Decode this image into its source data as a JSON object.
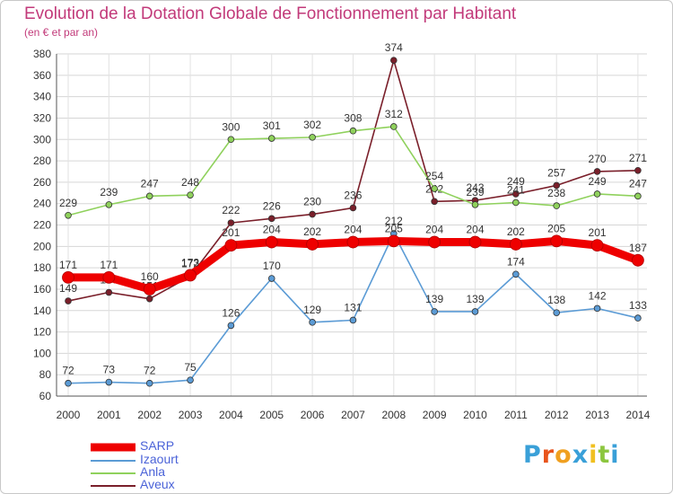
{
  "header": {
    "title": "Evolution de la Dotation Globale de Fonctionnement par Habitant",
    "subtitle": "(en € et par an)"
  },
  "chart_data": {
    "type": "line",
    "title": "Evolution de la Dotation Globale de Fonctionnement par Habitant",
    "subtitle": "(en € et par an)",
    "xlabel": "",
    "ylabel": "",
    "ylim": [
      60,
      380
    ],
    "yticks": [
      60,
      80,
      100,
      120,
      140,
      160,
      180,
      200,
      220,
      240,
      260,
      280,
      300,
      320,
      340,
      360,
      380
    ],
    "grid": true,
    "legend_position": "bottom-left",
    "categories": [
      "2000",
      "2001",
      "2002",
      "2003",
      "2004",
      "2005",
      "2006",
      "2007",
      "2008",
      "2009",
      "2010",
      "2011",
      "2012",
      "2013",
      "2014"
    ],
    "series": [
      {
        "name": "Aveux",
        "color": "#7a1f2a",
        "values": [
          149,
          157,
          151,
          172,
          222,
          226,
          230,
          236,
          374,
          242,
          243,
          249,
          257,
          270,
          271
        ],
        "labels": [
          "149",
          "157",
          "151",
          "172",
          "222",
          "226",
          "230",
          "236",
          "374",
          "242",
          "243",
          "249",
          "257",
          "270",
          "271"
        ]
      },
      {
        "name": "Anla",
        "color": "#8fd15c",
        "values": [
          229,
          239,
          247,
          248,
          300,
          301,
          302,
          308,
          312,
          254,
          239,
          241,
          238,
          249,
          247
        ],
        "labels": [
          "229",
          "239",
          "247",
          "248",
          "300",
          "301",
          "302",
          "308",
          "312",
          "254",
          "239",
          "241",
          "238",
          "249",
          "247"
        ]
      },
      {
        "name": "Izaourt",
        "color": "#5b9bd5",
        "values": [
          72,
          73,
          72,
          75,
          126,
          170,
          129,
          131,
          212,
          139,
          139,
          174,
          138,
          142,
          133
        ],
        "labels": [
          "72",
          "73",
          "72",
          "75",
          "126",
          "170",
          "129",
          "131",
          "212",
          "139",
          "139",
          "174",
          "138",
          "142",
          "133"
        ]
      },
      {
        "name": "SARP",
        "color": "#ee0000",
        "values": [
          171,
          171,
          160,
          173,
          201,
          204,
          202,
          204,
          205,
          204,
          204,
          202,
          205,
          201,
          187
        ],
        "labels": [
          "171",
          "171",
          "160",
          "173",
          "201",
          "204",
          "202",
          "204",
          "205",
          "204",
          "204",
          "202",
          "205",
          "201",
          "187"
        ]
      }
    ],
    "legend": [
      "SARP",
      "Izaourt",
      "Anla",
      "Aveux"
    ]
  },
  "legend": {
    "items": [
      {
        "label": "SARP",
        "color": "#ee0000"
      },
      {
        "label": "Izaourt",
        "color": "#5b9bd5"
      },
      {
        "label": "Anla",
        "color": "#8fd15c"
      },
      {
        "label": "Aveux",
        "color": "#7a1f2a"
      }
    ]
  },
  "logo": {
    "letters": [
      "P",
      "r",
      "o",
      "x",
      "i",
      "t",
      "i"
    ],
    "colors": [
      "#3aa0d8",
      "#e8541c",
      "#f0a020",
      "#3aa0d8",
      "#f0c020",
      "#8cc63f",
      "#3aa0d8"
    ]
  }
}
